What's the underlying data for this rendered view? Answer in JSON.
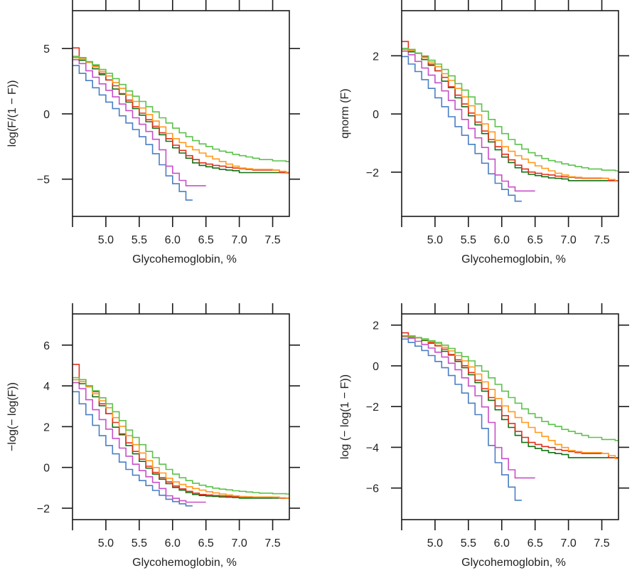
{
  "chart_data": [
    {
      "type": "line",
      "step": true,
      "title": "",
      "xlabel": "Glycohemoglobin, %",
      "ylabel": "log(F/(1 − F))",
      "transform": "logit",
      "xlim": [
        4.5,
        7.75
      ],
      "ylim": [
        -7.85,
        7.9
      ],
      "xticks": [
        5.0,
        5.5,
        6.0,
        6.5,
        7.0,
        7.5
      ],
      "xtick_labels": [
        "5.0",
        "5.5",
        "6.0",
        "6.5",
        "7.0",
        "7.5"
      ],
      "yticks": [
        -5,
        0,
        5
      ],
      "ytick_labels": [
        "−5",
        "0",
        "5"
      ],
      "grid": false,
      "legend": "none"
    },
    {
      "type": "line",
      "step": true,
      "title": "",
      "xlabel": "Glycohemoglobin, %",
      "ylabel": "qnorm (F)",
      "transform": "qnorm",
      "xlim": [
        4.5,
        7.75
      ],
      "ylim": [
        -3.52,
        3.55
      ],
      "xticks": [
        5.0,
        5.5,
        6.0,
        6.5,
        7.0,
        7.5
      ],
      "xtick_labels": [
        "5.0",
        "5.5",
        "6.0",
        "6.5",
        "7.0",
        "7.5"
      ],
      "yticks": [
        -2,
        0,
        2
      ],
      "ytick_labels": [
        "−2",
        "0",
        "2"
      ],
      "grid": false,
      "legend": "none"
    },
    {
      "type": "line",
      "step": true,
      "title": "",
      "xlabel": "Glycohemoglobin, %",
      "ylabel": "−log(− log(F))",
      "transform": "neglogneglog",
      "xlim": [
        4.5,
        7.75
      ],
      "ylim": [
        -2.56,
        7.53
      ],
      "xticks": [
        5.0,
        5.5,
        6.0,
        6.5,
        7.0,
        7.5
      ],
      "xtick_labels": [
        "5.0",
        "5.5",
        "6.0",
        "6.5",
        "7.0",
        "7.5"
      ],
      "yticks": [
        -2,
        0,
        2,
        4,
        6
      ],
      "ytick_labels": [
        "−2",
        "0",
        "2",
        "4",
        "6"
      ],
      "grid": false,
      "legend": "none"
    },
    {
      "type": "line",
      "step": true,
      "title": "",
      "xlabel": "Glycohemoglobin, %",
      "ylabel": "log (− log(1 − F))",
      "transform": "cloglog",
      "xlim": [
        4.5,
        7.75
      ],
      "ylim": [
        -7.55,
        2.55
      ],
      "xticks": [
        5.0,
        5.5,
        6.0,
        6.5,
        7.0,
        7.5
      ],
      "xtick_labels": [
        "5.0",
        "5.5",
        "6.0",
        "6.5",
        "7.0",
        "7.5"
      ],
      "yticks": [
        -6,
        -4,
        -2,
        0,
        2
      ],
      "ytick_labels": [
        "−6",
        "−4",
        "−2",
        "0",
        "2"
      ],
      "grid": false,
      "legend": "none"
    }
  ],
  "series": [
    {
      "name": "series-blue",
      "color": "#4a7fc4",
      "x_start": 4.5,
      "x_step": 0.1,
      "x_end": 6.3,
      "logit_F": [
        3.7,
        3.1,
        2.55,
        2.0,
        1.45,
        0.9,
        0.4,
        -0.15,
        -0.7,
        -1.2,
        -1.75,
        -2.35,
        -3.05,
        -3.9,
        -4.75,
        -5.35,
        -5.95,
        -6.6
      ]
    },
    {
      "name": "series-magenta",
      "color": "#c850c8",
      "x_start": 4.5,
      "x_step": 0.1,
      "x_end": 6.5,
      "logit_F": [
        4.15,
        3.85,
        3.3,
        2.8,
        2.3,
        1.8,
        1.3,
        0.75,
        0.25,
        -0.3,
        -0.8,
        -1.35,
        -1.95,
        -2.75,
        -4.0,
        -4.55,
        -5.1,
        -5.5
      ]
    },
    {
      "name": "series-dark-green",
      "color": "#137013",
      "x_start": 4.5,
      "x_step": 0.1,
      "x_end": 7.75,
      "logit_F": [
        4.3,
        4.1,
        3.95,
        3.45,
        3.0,
        2.6,
        1.9,
        1.5,
        0.9,
        0.4,
        -0.1,
        -0.6,
        -1.1,
        -1.6,
        -2.1,
        -2.6,
        -3.0,
        -3.4,
        -3.75,
        -3.95,
        -4.05,
        -4.15,
        -4.25,
        -4.3,
        -4.35,
        -4.5,
        -4.5,
        -4.5,
        -4.5,
        -4.5,
        -4.5,
        -4.5,
        -4.5
      ]
    },
    {
      "name": "series-red",
      "color": "#e0301c",
      "x_start": 4.5,
      "x_step": 0.1,
      "x_end": 7.75,
      "logit_F": [
        5.05,
        4.3,
        3.95,
        3.7,
        3.1,
        2.6,
        2.15,
        1.55,
        1.05,
        0.55,
        0.05,
        -0.45,
        -0.95,
        -1.45,
        -1.9,
        -2.4,
        -2.8,
        -3.2,
        -3.5,
        -3.75,
        -3.85,
        -3.95,
        -4.0,
        -4.1,
        -4.15,
        -4.2,
        -4.25,
        -4.3,
        -4.3,
        -4.3,
        -4.3,
        -4.5,
        -4.5
      ]
    },
    {
      "name": "series-orange",
      "color": "#ff9a1e",
      "x_start": 4.5,
      "x_step": 0.1,
      "x_end": 7.75,
      "logit_F": [
        4.3,
        4.2,
        3.95,
        3.6,
        3.25,
        2.9,
        2.4,
        1.95,
        1.45,
        0.95,
        0.45,
        -0.05,
        -0.55,
        -1.0,
        -1.5,
        -1.9,
        -2.2,
        -2.5,
        -2.75,
        -3.0,
        -3.25,
        -3.45,
        -3.65,
        -3.85,
        -4.0,
        -4.15,
        -4.2,
        -4.25,
        -4.25,
        -4.25,
        -4.3,
        -4.4,
        -4.55
      ]
    },
    {
      "name": "series-light-green",
      "color": "#5cc24c",
      "x_start": 4.5,
      "x_step": 0.1,
      "x_end": 7.75,
      "logit_F": [
        4.4,
        4.3,
        4.0,
        3.75,
        3.4,
        3.1,
        2.7,
        2.25,
        1.75,
        1.35,
        0.95,
        0.55,
        0.15,
        -0.3,
        -0.7,
        -1.1,
        -1.45,
        -1.75,
        -2.05,
        -2.3,
        -2.5,
        -2.7,
        -2.85,
        -2.95,
        -3.1,
        -3.2,
        -3.3,
        -3.4,
        -3.5,
        -3.5,
        -3.6,
        -3.6,
        -3.65
      ]
    }
  ]
}
